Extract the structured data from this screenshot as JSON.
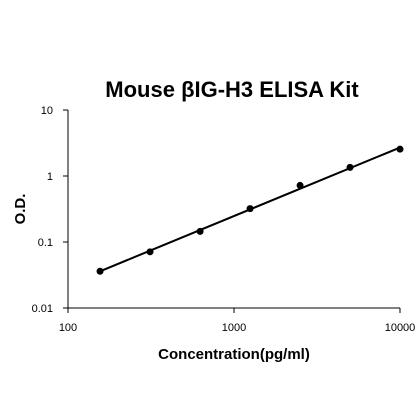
{
  "chart_data": {
    "type": "scatter",
    "title": "Mouse βIG-H3 ELISA Kit",
    "xlabel": "Concentration(pg/ml)",
    "ylabel": "O.D.",
    "x_scale": "log",
    "y_scale": "log",
    "xlim": [
      100,
      10000
    ],
    "ylim": [
      0.01,
      10
    ],
    "x_ticks": [
      100,
      1000,
      10000
    ],
    "x_tick_labels": [
      "100",
      "1000",
      "10000"
    ],
    "y_ticks": [
      0.01,
      0.1,
      1,
      10
    ],
    "y_tick_labels": [
      "0.01",
      "0.1",
      "1",
      "10"
    ],
    "grid": false,
    "legend": "none",
    "series": [
      {
        "x": [
          156,
          312,
          625,
          1250,
          2500,
          5000,
          10000
        ],
        "values": [
          0.036,
          0.071,
          0.145,
          0.32,
          0.72,
          1.35,
          2.55
        ]
      }
    ],
    "fit_line": {
      "type": "log-log linear",
      "x": [
        156,
        10000
      ],
      "values": [
        0.036,
        2.7
      ]
    },
    "marker_color": "#000000",
    "line_color": "#000000"
  }
}
